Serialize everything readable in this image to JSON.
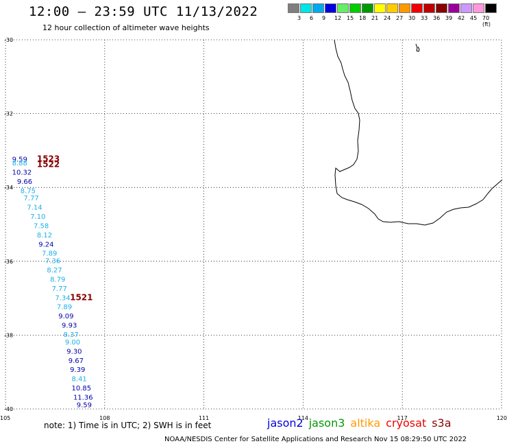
{
  "header": {
    "title": "12:00 — 23:59 UTC 11/13/2022",
    "subtitle": "12 hour collection of altimeter wave heights"
  },
  "color_scale": {
    "colors": [
      "#7f7f7f",
      "#00e5e5",
      "#00aaee",
      "#0000dd",
      "#66ee66",
      "#00cc00",
      "#009900",
      "#ffff00",
      "#ffcc00",
      "#ff9900",
      "#ee0000",
      "#bb0000",
      "#880000",
      "#990099",
      "#cc99ff",
      "#ff99dd",
      "#000000"
    ],
    "tick_labels": [
      "3",
      "6",
      "9",
      "12",
      "15",
      "18",
      "21",
      "24",
      "27",
      "30",
      "33",
      "36",
      "39",
      "42",
      "45",
      "70 (ft)"
    ]
  },
  "map": {
    "lon_range": [
      105,
      120
    ],
    "lat_range": [
      -40,
      -30
    ],
    "lat_ticks": [
      {
        "value": -30,
        "label": "-30"
      },
      {
        "value": -32,
        "label": "-32"
      },
      {
        "value": -34,
        "label": "-34"
      },
      {
        "value": -36,
        "label": "-36"
      },
      {
        "value": -38,
        "label": "-38"
      },
      {
        "value": -40,
        "label": "-40"
      }
    ],
    "lon_ticks": [
      {
        "value": 105,
        "label": "105"
      },
      {
        "value": 108,
        "label": "108"
      },
      {
        "value": 111,
        "label": "111"
      },
      {
        "value": 114,
        "label": "114"
      },
      {
        "value": 117,
        "label": "117"
      },
      {
        "value": 120,
        "label": "120"
      }
    ],
    "grid": "dotted",
    "coastline_color": "#000000"
  },
  "observations": [
    {
      "text": "9.59",
      "lon": 105.2,
      "lat": -33.3,
      "color": "#0000aa"
    },
    {
      "text": "8.88",
      "lon": 105.2,
      "lat": -33.4,
      "color": "#1ab0e8"
    },
    {
      "text": "10.32",
      "lon": 105.2,
      "lat": -33.65,
      "color": "#0000aa"
    },
    {
      "text": "9.66",
      "lon": 105.35,
      "lat": -33.9,
      "color": "#0000aa"
    },
    {
      "text": "8.75",
      "lon": 105.45,
      "lat": -34.15,
      "color": "#1ab0e8"
    },
    {
      "text": "7.77",
      "lon": 105.55,
      "lat": -34.35,
      "color": "#1ab0e8"
    },
    {
      "text": "7.14",
      "lon": 105.65,
      "lat": -34.6,
      "color": "#1ab0e8"
    },
    {
      "text": "7.10",
      "lon": 105.75,
      "lat": -34.85,
      "color": "#1ab0e8"
    },
    {
      "text": "7.58",
      "lon": 105.85,
      "lat": -35.1,
      "color": "#1ab0e8"
    },
    {
      "text": "8.12",
      "lon": 105.95,
      "lat": -35.35,
      "color": "#1ab0e8"
    },
    {
      "text": "9.24",
      "lon": 106.0,
      "lat": -35.6,
      "color": "#0000aa"
    },
    {
      "text": "7.89",
      "lon": 106.1,
      "lat": -35.85,
      "color": "#1ab0e8"
    },
    {
      "text": "7.36",
      "lon": 106.2,
      "lat": -36.05,
      "color": "#1ab0e8"
    },
    {
      "text": "8.27",
      "lon": 106.25,
      "lat": -36.3,
      "color": "#1ab0e8"
    },
    {
      "text": "8.79",
      "lon": 106.35,
      "lat": -36.55,
      "color": "#1ab0e8"
    },
    {
      "text": "7.77",
      "lon": 106.4,
      "lat": -36.8,
      "color": "#1ab0e8"
    },
    {
      "text": "7.34",
      "lon": 106.5,
      "lat": -37.05,
      "color": "#1ab0e8"
    },
    {
      "text": "7.89",
      "lon": 106.55,
      "lat": -37.3,
      "color": "#1ab0e8"
    },
    {
      "text": "9.09",
      "lon": 106.6,
      "lat": -37.55,
      "color": "#0000aa"
    },
    {
      "text": "9.93",
      "lon": 106.7,
      "lat": -37.8,
      "color": "#0000aa"
    },
    {
      "text": "8.37",
      "lon": 106.75,
      "lat": -38.05,
      "color": "#1ab0e8"
    },
    {
      "text": "9.00",
      "lon": 106.8,
      "lat": -38.25,
      "color": "#1ab0e8"
    },
    {
      "text": "9.30",
      "lon": 106.85,
      "lat": -38.5,
      "color": "#0000aa"
    },
    {
      "text": "9.67",
      "lon": 106.9,
      "lat": -38.75,
      "color": "#0000aa"
    },
    {
      "text": "9.39",
      "lon": 106.95,
      "lat": -39.0,
      "color": "#0000aa"
    },
    {
      "text": "8.41",
      "lon": 107.0,
      "lat": -39.25,
      "color": "#1ab0e8"
    },
    {
      "text": "10.85",
      "lon": 107.0,
      "lat": -39.5,
      "color": "#0000aa"
    },
    {
      "text": "11.36",
      "lon": 107.05,
      "lat": -39.75,
      "color": "#0000aa"
    },
    {
      "text": "9.59",
      "lon": 107.15,
      "lat": -39.95,
      "color": "#0000aa"
    }
  ],
  "time_labels": [
    {
      "text": "1523",
      "lon": 105.95,
      "lat": -33.3,
      "color": "#880000"
    },
    {
      "text": "1522",
      "lon": 105.95,
      "lat": -33.45,
      "color": "#880000"
    },
    {
      "text": "1521",
      "lon": 106.95,
      "lat": -37.05,
      "color": "#880000"
    }
  ],
  "footer": {
    "note": "note:  1) Time is in UTC;  2) SWH is in feet",
    "credit": "NOAA/NESDIS Center for Satellite Applications and Research     Nov 15 08:29:50 UTC 2022"
  },
  "legend": [
    {
      "name": "jason2",
      "color": "#0000dd"
    },
    {
      "name": "jason3",
      "color": "#009900"
    },
    {
      "name": "altika",
      "color": "#ff9900"
    },
    {
      "name": "cryosat",
      "color": "#ee0000"
    },
    {
      "name": "s3a",
      "color": "#880000"
    }
  ]
}
